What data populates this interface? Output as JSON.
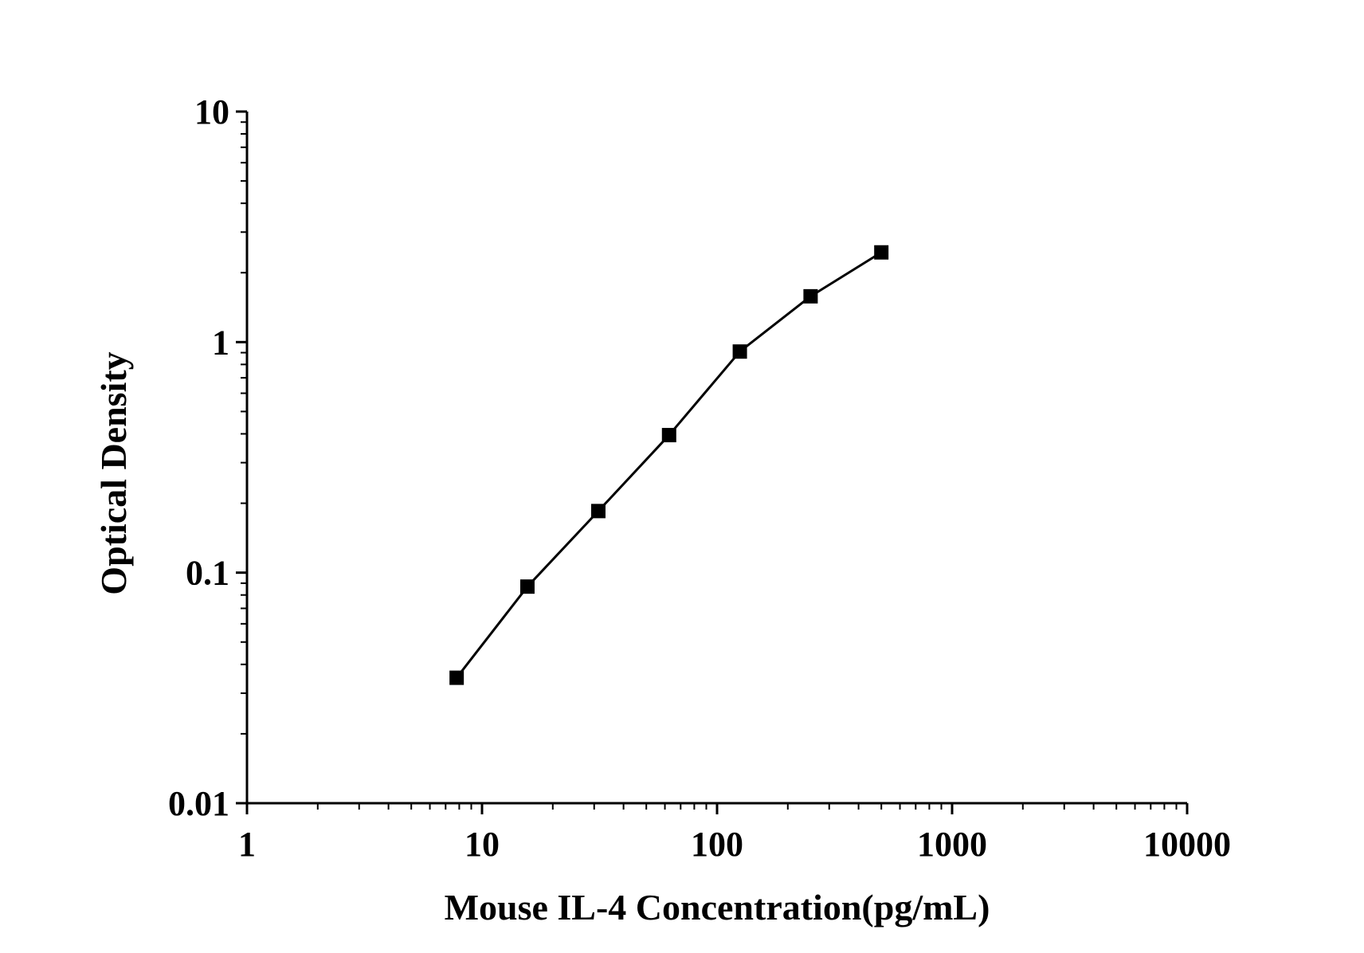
{
  "chart_data": {
    "type": "line",
    "title": "",
    "xlabel": "Mouse IL-4 Concentration(pg/mL)",
    "ylabel": "Optical Density",
    "x_scale": "log",
    "y_scale": "log",
    "xlim": [
      1,
      10000
    ],
    "ylim": [
      0.01,
      10
    ],
    "x_ticks": [
      "1",
      "10",
      "100",
      "1000",
      "10000"
    ],
    "y_ticks": [
      "0.01",
      "0.1",
      "1",
      "10"
    ],
    "grid": false,
    "legend": "none",
    "marker": "square",
    "color": "#000000",
    "series": [
      {
        "x": [
          7.8,
          15.6,
          31.25,
          62.5,
          125,
          250,
          500
        ],
        "y": [
          0.035,
          0.087,
          0.185,
          0.395,
          0.91,
          1.58,
          2.45
        ]
      }
    ]
  }
}
